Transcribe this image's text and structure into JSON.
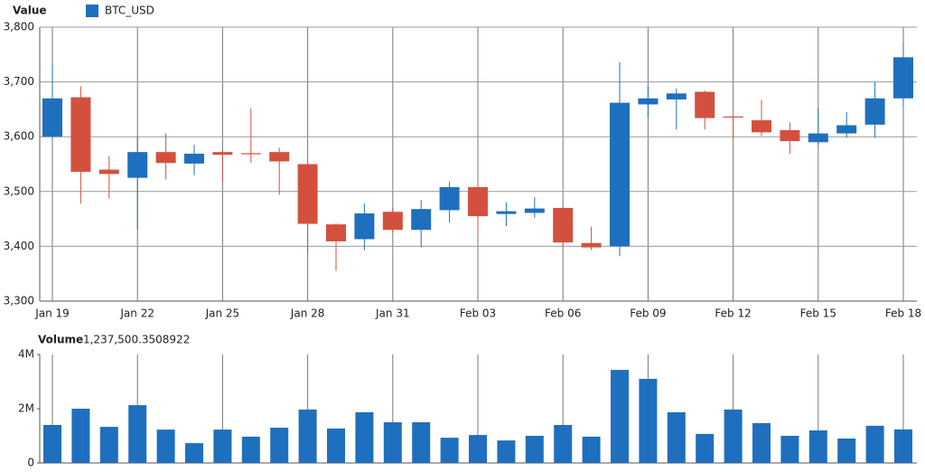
{
  "chart_data": [
    {
      "type": "candlestick",
      "title": "Value",
      "categories": [
        "Jan 19",
        null,
        null,
        "Jan 22",
        null,
        null,
        "Jan 25",
        null,
        null,
        "Jan 28",
        null,
        null,
        "Jan 31",
        null,
        null,
        "Feb 03",
        null,
        null,
        "Feb 06",
        null,
        null,
        "Feb 09",
        null,
        null,
        "Feb 12",
        null,
        null,
        "Feb 15",
        null,
        null,
        "Feb 18"
      ],
      "series": [
        {
          "name": "BTC_USD",
          "color": "#1f6fbf",
          "down_color": "#d4503e",
          "open": [
            3600,
            3672,
            3540,
            3525,
            3572,
            3551,
            3572,
            3570,
            3572,
            3550,
            3440,
            3413,
            3463,
            3430,
            3466,
            3508,
            3459,
            3461,
            3470,
            3406,
            3400,
            3659,
            3668,
            3682,
            3637,
            3630,
            3612,
            3590,
            3606,
            3622,
            3670
          ],
          "high": [
            3730,
            3692,
            3565,
            3600,
            3606,
            3585,
            3575,
            3652,
            3580,
            3552,
            3442,
            3478,
            3470,
            3484,
            3518,
            3518,
            3480,
            3490,
            3472,
            3436,
            3736,
            3692,
            3688,
            3684,
            3638,
            3667,
            3626,
            3652,
            3645,
            3700,
            3772
          ],
          "low": [
            3595,
            3478,
            3487,
            3430,
            3522,
            3530,
            3518,
            3553,
            3494,
            3387,
            3355,
            3393,
            3425,
            3398,
            3443,
            3420,
            3437,
            3452,
            3400,
            3393,
            3382,
            3635,
            3613,
            3613,
            3595,
            3602,
            3569,
            3585,
            3598,
            3598,
            3656
          ],
          "close": [
            3670,
            3536,
            3532,
            3572,
            3552,
            3569,
            3567,
            3568,
            3555,
            3441,
            3409,
            3460,
            3430,
            3468,
            3508,
            3455,
            3464,
            3469,
            3407,
            3398,
            3662,
            3670,
            3679,
            3634,
            3635,
            3608,
            3592,
            3606,
            3621,
            3670,
            3745
          ]
        }
      ],
      "ylim": [
        3300,
        3800
      ],
      "yticks": [
        {
          "value": 3300,
          "label": "3,300"
        },
        {
          "value": 3400,
          "label": "3,400"
        },
        {
          "value": 3500,
          "label": "3,500"
        },
        {
          "value": 3600,
          "label": "3,600"
        },
        {
          "value": 3700,
          "label": "3,700"
        },
        {
          "value": 3800,
          "label": "3,800"
        }
      ],
      "grid": "both"
    },
    {
      "type": "bar",
      "title": "Volume",
      "color": "#1f6fbf",
      "readout": {
        "value": 1237500.3508922,
        "label": "1,237,500.3508922"
      },
      "values": [
        1400000,
        2000000,
        1330000,
        2130000,
        1230000,
        730000,
        1230000,
        970000,
        1300000,
        1970000,
        1270000,
        1870000,
        1500000,
        1500000,
        930000,
        1030000,
        830000,
        1000000,
        1400000,
        970000,
        3430000,
        3100000,
        1870000,
        1070000,
        1970000,
        1470000,
        1000000,
        1200000,
        900000,
        1370000,
        1237500.3508922
      ],
      "ylim": [
        0,
        4000000
      ],
      "yticks": [
        0,
        {
          "value": 2000000,
          "label": "2M"
        },
        {
          "value": 4000000,
          "label": "4M"
        }
      ],
      "grid": "x"
    }
  ]
}
